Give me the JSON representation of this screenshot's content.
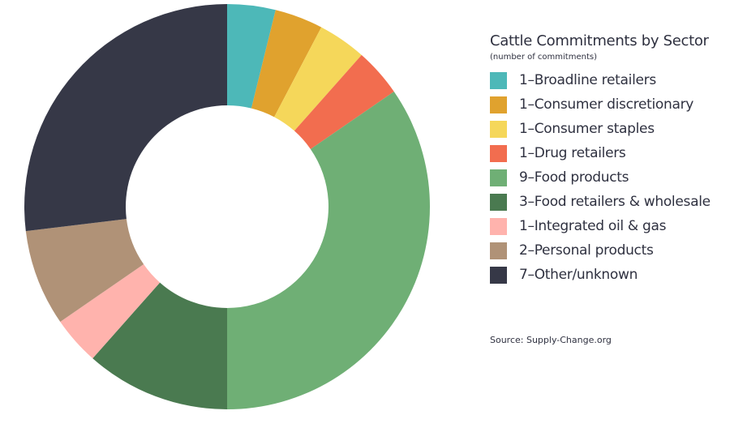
{
  "chart_data": {
    "type": "pie",
    "donut": true,
    "title": "Cattle Commitments by Sector",
    "subtitle": "(number of commitments)",
    "source": "Source: Supply-Change.org",
    "legend_position": "right",
    "slices": [
      {
        "label": "1–Broadline retailers",
        "value": 1,
        "color": "#4db8b8"
      },
      {
        "label": "1–Consumer discretionary",
        "value": 1,
        "color": "#e0a22e"
      },
      {
        "label": "1–Consumer staples",
        "value": 1,
        "color": "#f5d75a"
      },
      {
        "label": "1–Drug retailers",
        "value": 1,
        "color": "#f26d4f"
      },
      {
        "label": "9–Food products",
        "value": 9,
        "color": "#6faf75"
      },
      {
        "label": "3–Food retailers & wholesale",
        "value": 3,
        "color": "#4a7a50"
      },
      {
        "label": "1–Integrated oil & gas",
        "value": 1,
        "color": "#ffb3ad"
      },
      {
        "label": "2–Personal products",
        "value": 2,
        "color": "#b09277"
      },
      {
        "label": "7–Other/unknown",
        "value": 7,
        "color": "#363847"
      }
    ]
  }
}
